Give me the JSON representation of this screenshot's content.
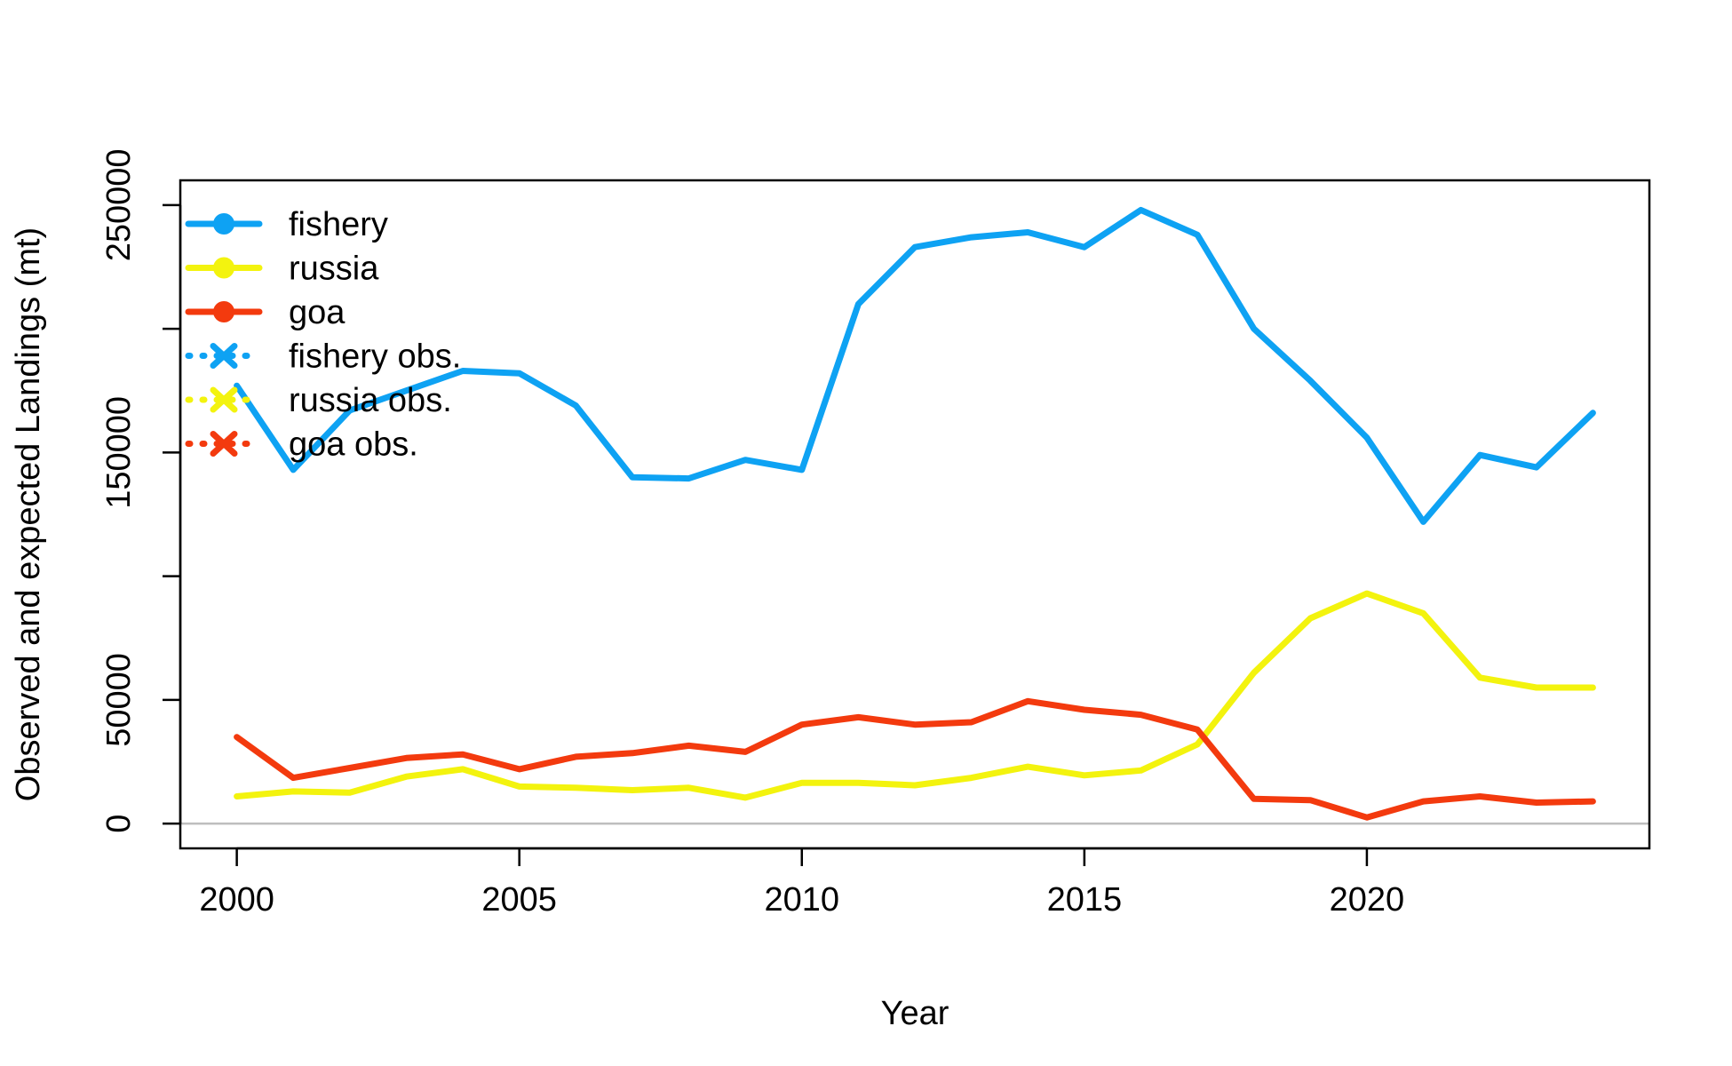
{
  "chart_data": {
    "type": "line",
    "title": "",
    "xlabel": "Year",
    "ylabel": "Observed and expected Landings (mt)",
    "xlim": [
      1999,
      2025
    ],
    "ylim": [
      -10000,
      260000
    ],
    "x_ticks": [
      "2000",
      "2005",
      "2010",
      "2015",
      "2020"
    ],
    "y_ticks": [
      "0",
      "50000",
      "150000",
      "250000"
    ],
    "y_tick_marks": [
      0,
      50000,
      100000,
      150000,
      200000,
      250000
    ],
    "zero_line": true,
    "grid": false,
    "legend_position": "top-left",
    "x": [
      2000,
      2001,
      2002,
      2003,
      2004,
      2005,
      2006,
      2007,
      2008,
      2009,
      2010,
      2011,
      2012,
      2013,
      2014,
      2015,
      2016,
      2017,
      2018,
      2019,
      2020,
      2021,
      2022,
      2023,
      2024
    ],
    "series": [
      {
        "name": "fishery",
        "color": "#0ea2f3",
        "values": [
          177000,
          143000,
          167000,
          175000,
          183000,
          182000,
          169000,
          140000,
          139500,
          147000,
          143000,
          210000,
          233000,
          237000,
          239000,
          233000,
          248000,
          238000,
          200000,
          179000,
          156000,
          122000,
          149000,
          144000,
          166000
        ]
      },
      {
        "name": "russia",
        "color": "#f3f30e",
        "values": [
          11000,
          13000,
          12500,
          19000,
          22000,
          15000,
          14500,
          13500,
          14500,
          10500,
          16500,
          16500,
          15500,
          18500,
          23000,
          19500,
          21500,
          32000,
          61000,
          83000,
          93000,
          85000,
          59000,
          55000,
          55000
        ]
      },
      {
        "name": "goa",
        "color": "#f33a0e",
        "values": [
          35000,
          18500,
          22500,
          26500,
          28000,
          22000,
          27000,
          28500,
          31500,
          29000,
          40000,
          43000,
          40000,
          41000,
          49500,
          46000,
          44000,
          38000,
          10000,
          9500,
          2500,
          9000,
          11000,
          8500,
          9000
        ]
      }
    ],
    "legend": [
      {
        "label": "fishery",
        "color": "#0ea2f3",
        "kind": "solid-dot"
      },
      {
        "label": "russia",
        "color": "#f3f30e",
        "kind": "solid-dot"
      },
      {
        "label": "goa",
        "color": "#f33a0e",
        "kind": "solid-dot"
      },
      {
        "label": "fishery obs.",
        "color": "#0ea2f3",
        "kind": "dotted-cross"
      },
      {
        "label": "russia obs.",
        "color": "#f3f30e",
        "kind": "dotted-cross"
      },
      {
        "label": "goa obs.",
        "color": "#f33a0e",
        "kind": "dotted-cross"
      }
    ]
  }
}
